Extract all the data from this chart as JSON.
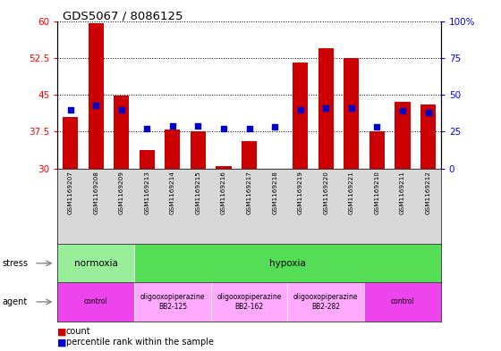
{
  "title": "GDS5067 / 8086125",
  "samples": [
    "GSM1169207",
    "GSM1169208",
    "GSM1169209",
    "GSM1169213",
    "GSM1169214",
    "GSM1169215",
    "GSM1169216",
    "GSM1169217",
    "GSM1169218",
    "GSM1169219",
    "GSM1169220",
    "GSM1169221",
    "GSM1169210",
    "GSM1169211",
    "GSM1169212"
  ],
  "counts": [
    40.5,
    59.5,
    44.8,
    33.8,
    38.0,
    37.5,
    30.5,
    35.5,
    30.0,
    51.5,
    54.5,
    52.5,
    37.5,
    43.5,
    43.0
  ],
  "percentiles": [
    40,
    43,
    40,
    27,
    29,
    29,
    27,
    27,
    28,
    40,
    41,
    41,
    28,
    39,
    38
  ],
  "ylim_left": [
    30,
    60
  ],
  "ylim_right": [
    0,
    100
  ],
  "yticks_left": [
    30,
    37.5,
    45,
    52.5,
    60
  ],
  "yticks_right": [
    0,
    25,
    50,
    75,
    100
  ],
  "bar_color": "#cc0000",
  "dot_color": "#0000cc",
  "stress_normoxia_color": "#99ee99",
  "stress_hypoxia_color": "#55dd55",
  "agent_control_color": "#ee44ee",
  "agent_oligo_color": "#ffaaff",
  "stress_groups": [
    {
      "label": "normoxia",
      "start": 0,
      "end": 3
    },
    {
      "label": "hypoxia",
      "start": 3,
      "end": 15
    }
  ],
  "agent_groups": [
    {
      "label": "control",
      "start": 0,
      "end": 3
    },
    {
      "label": "oligooxopiperazine\nBB2-125",
      "start": 3,
      "end": 6
    },
    {
      "label": "oligooxopiperazine\nBB2-162",
      "start": 6,
      "end": 9
    },
    {
      "label": "oligooxopiperazine\nBB2-282",
      "start": 9,
      "end": 12
    },
    {
      "label": "control",
      "start": 12,
      "end": 15
    }
  ]
}
